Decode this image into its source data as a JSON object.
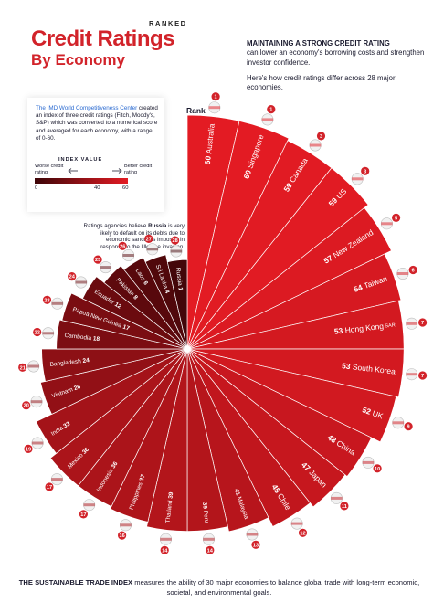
{
  "header": {
    "ranked": "RANKED",
    "title_line1": "Credit Ratings",
    "title_line2": "By Economy"
  },
  "intro": {
    "heading": "MAINTAINING A STRONG CREDIT RATING",
    "body": "can lower an economy's borrowing costs and strengthen investor confidence.",
    "second": "Here's how credit ratings differ across 28 major economies."
  },
  "infobox": {
    "link_text": "The IMD World Competitiveness Center",
    "text": "created an index of three credit ratings (Fitch, Moody's, S&P) which was converted to a numerical score and averaged for each economy, with a range of 0-60.",
    "index_title": "INDEX VALUE",
    "worse_label": "Worse credit rating",
    "better_label": "Better credit rating",
    "ticks": [
      "0",
      "40",
      "60"
    ]
  },
  "note": {
    "prefix": "Ratings agencies believe",
    "country": "Russia",
    "rest": "is very likely to default on its debts due to economic sanctions imposed in response to the Ukraine invasion."
  },
  "footer": {
    "bold": "THE SUSTAINABLE TRADE INDEX",
    "text": "measures the ability of 30 major economies to balance global trade with long-term economic, societal, and environmental goals."
  },
  "colors": {
    "brand_red": "#d2232a",
    "bar_high": "#e31b23",
    "bar_low": "#3d0508"
  },
  "chart_data": {
    "type": "radial-bar",
    "rank_label": "Rank",
    "value_range": [
      0,
      60
    ],
    "unit_suffix": "SAR",
    "series": [
      {
        "rank": 1,
        "name": "Australia",
        "value": 60,
        "flag": "australia-flag-icon"
      },
      {
        "rank": 1,
        "name": "Singapore",
        "value": 60,
        "flag": "singapore-flag-icon"
      },
      {
        "rank": 3,
        "name": "Canada",
        "value": 59,
        "flag": "canada-flag-icon"
      },
      {
        "rank": 3,
        "name": "US",
        "value": 59,
        "flag": "us-flag-icon"
      },
      {
        "rank": 5,
        "name": "New Zealand",
        "value": 57,
        "flag": "new-zealand-flag-icon"
      },
      {
        "rank": 6,
        "name": "Taiwan",
        "value": 54,
        "flag": "taiwan-flag-icon"
      },
      {
        "rank": 7,
        "name": "Hong Kong",
        "value": 53,
        "flag": "hong-kong-flag-icon",
        "suffix": "SAR"
      },
      {
        "rank": 7,
        "name": "South Korea",
        "value": 53,
        "flag": "south-korea-flag-icon"
      },
      {
        "rank": 9,
        "name": "UK",
        "value": 52,
        "flag": "uk-flag-icon"
      },
      {
        "rank": 10,
        "name": "China",
        "value": 48,
        "flag": "china-flag-icon"
      },
      {
        "rank": 11,
        "name": "Japan",
        "value": 47,
        "flag": "japan-flag-icon"
      },
      {
        "rank": 12,
        "name": "Chile",
        "value": 45,
        "flag": "chile-flag-icon"
      },
      {
        "rank": 13,
        "name": "Malaysia",
        "value": 41,
        "flag": "malaysia-flag-icon"
      },
      {
        "rank": 14,
        "name": "Peru",
        "value": 39,
        "flag": "peru-flag-icon"
      },
      {
        "rank": 14,
        "name": "Thailand",
        "value": 39,
        "flag": "thailand-flag-icon"
      },
      {
        "rank": 16,
        "name": "Philippines",
        "value": 37,
        "flag": "philippines-flag-icon"
      },
      {
        "rank": 17,
        "name": "Indonesia",
        "value": 36,
        "flag": "indonesia-flag-icon"
      },
      {
        "rank": 17,
        "name": "Mexico",
        "value": 36,
        "flag": "mexico-flag-icon"
      },
      {
        "rank": 19,
        "name": "India",
        "value": 33,
        "flag": "india-flag-icon"
      },
      {
        "rank": 20,
        "name": "Vietnam",
        "value": 26,
        "flag": "vietnam-flag-icon"
      },
      {
        "rank": 21,
        "name": "Bangladesh",
        "value": 24,
        "flag": "bangladesh-flag-icon"
      },
      {
        "rank": 22,
        "name": "Cambodia",
        "value": 18,
        "flag": "cambodia-flag-icon"
      },
      {
        "rank": 23,
        "name": "Papua New Guinea",
        "value": 17,
        "flag": "papua-new-guinea-flag-icon"
      },
      {
        "rank": 24,
        "name": "Ecuador",
        "value": 12,
        "flag": "ecuador-flag-icon"
      },
      {
        "rank": 25,
        "name": "Pakistan",
        "value": 8,
        "flag": "pakistan-flag-icon"
      },
      {
        "rank": 26,
        "name": "Laos",
        "value": 6,
        "flag": "laos-flag-icon"
      },
      {
        "rank": 27,
        "name": "Sri Lanka",
        "value": 4,
        "flag": "sri-lanka-flag-icon"
      },
      {
        "rank": 28,
        "name": "Russia",
        "value": 1,
        "flag": "russia-flag-icon"
      }
    ]
  }
}
